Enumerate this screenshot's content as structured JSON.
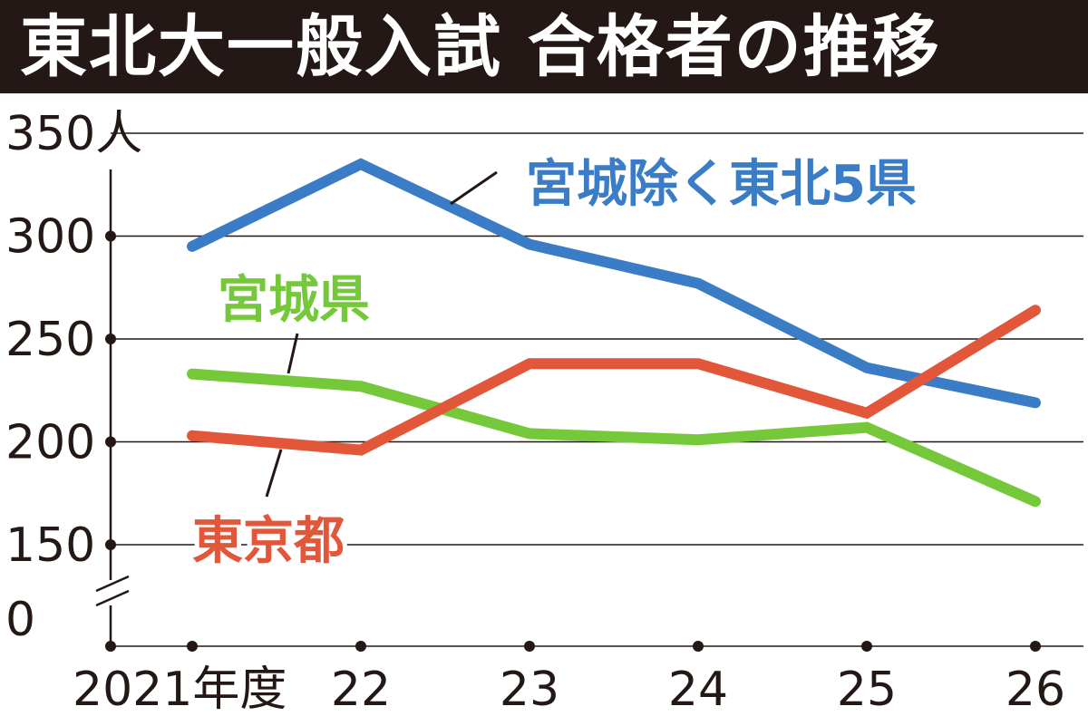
{
  "title": "東北大一般入試 合格者の推移",
  "chart_data": {
    "type": "line",
    "title": "東北大一般入試 合格者の推移",
    "x": [
      "2021年度",
      "22",
      "23",
      "24",
      "25",
      "26"
    ],
    "y_ticks": [
      "350人",
      "300",
      "250",
      "200",
      "150",
      "0"
    ],
    "ylim": [
      150,
      350
    ],
    "y_axis_break": true,
    "grid": true,
    "series": [
      {
        "name": "宮城除く東北5県",
        "color": "#3b7cc6",
        "values": [
          295,
          335,
          296,
          277,
          236,
          219
        ]
      },
      {
        "name": "宮城県",
        "color": "#74c83a",
        "values": [
          233,
          227,
          204,
          201,
          207,
          171
        ]
      },
      {
        "name": "東京都",
        "color": "#e2563a",
        "values": [
          203,
          196,
          238,
          238,
          214,
          264
        ]
      }
    ]
  }
}
